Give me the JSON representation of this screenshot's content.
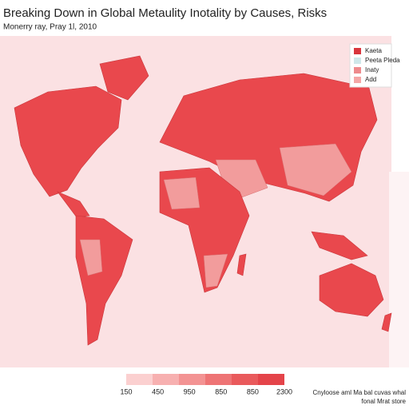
{
  "header": {
    "title": "Breaking Down in Global Metaulity Inotality by Causes, Risks",
    "subtitle": "Monerry ray, Pray 1l, 2010"
  },
  "legend": {
    "items": [
      {
        "label": "Kaeta",
        "color": "#d9363d"
      },
      {
        "label": "Peeta Pleda",
        "color": "#cfe8ea"
      },
      {
        "label": "Inaty",
        "color": "#ee8a8c"
      },
      {
        "label": "Add",
        "color": "#f4a7a6"
      }
    ]
  },
  "scale": {
    "labels": [
      "150",
      "450",
      "950",
      "850",
      "850",
      "2300"
    ]
  },
  "footer": {
    "note": [
      "Cnyloose aml Ma bal cuvas whal",
      "fonal Mrat store"
    ]
  }
}
